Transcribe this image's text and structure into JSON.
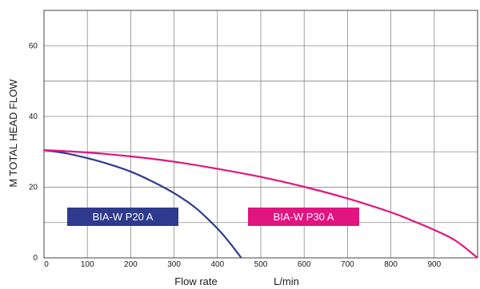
{
  "chart_data": {
    "type": "line",
    "xlabel": "Flow rate",
    "xunit": "L/min",
    "ylabel": "M TOTAL HEAD FLOW",
    "xlim": [
      0,
      1000
    ],
    "ylim": [
      0,
      70
    ],
    "x_ticks": [
      0,
      100,
      200,
      300,
      400,
      500,
      600,
      700,
      800,
      900
    ],
    "y_ticks": [
      0,
      20,
      40,
      60
    ],
    "grid": true,
    "series": [
      {
        "name": "BIA-W P20 A",
        "color": "#2e3a8c",
        "x": [
          0,
          50,
          100,
          150,
          200,
          250,
          300,
          350,
          400,
          430,
          455
        ],
        "y": [
          30.5,
          29.6,
          28.2,
          26.5,
          24.4,
          21.6,
          18.3,
          14.1,
          8.3,
          4.0,
          0
        ]
      },
      {
        "name": "BIA-W P30 A",
        "color": "#e0157f",
        "x": [
          0,
          100,
          200,
          300,
          400,
          500,
          600,
          700,
          800,
          850,
          900,
          950,
          1000
        ],
        "y": [
          30.5,
          29.8,
          28.7,
          27.2,
          25.2,
          22.9,
          20.1,
          16.8,
          12.9,
          10.5,
          7.9,
          4.8,
          0
        ]
      }
    ],
    "legend": [
      {
        "name": "BIA-W P20 A",
        "color": "#2e3a8c"
      },
      {
        "name": "BIA-W P30 A",
        "color": "#e0157f"
      }
    ]
  }
}
